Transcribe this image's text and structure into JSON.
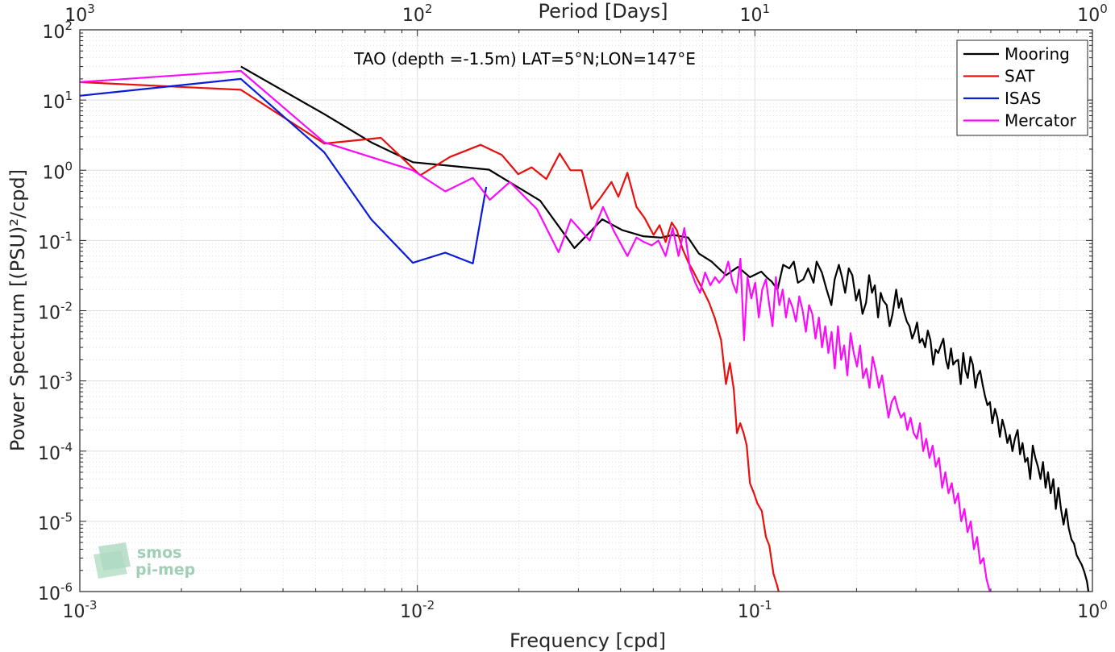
{
  "chart_data": {
    "type": "line",
    "title": "TAO (depth =-1.5m) LAT=5°N;LON=147°E",
    "xlabel": "Frequency [cpd]",
    "ylabel": "Power Spectrum [(PSU)²/cpd]",
    "top_xlabel": "Period [Days]",
    "xscale": "log",
    "yscale": "log",
    "xlim": [
      0.001,
      1
    ],
    "ylim": [
      1e-06,
      100
    ],
    "x_ticks": [
      {
        "base": "10",
        "exp": "-3"
      },
      {
        "base": "10",
        "exp": "-2"
      },
      {
        "base": "10",
        "exp": "-1"
      },
      {
        "base": "10",
        "exp": "0"
      }
    ],
    "top_ticks": [
      {
        "base": "10",
        "exp": "3"
      },
      {
        "base": "10",
        "exp": "2"
      },
      {
        "base": "10",
        "exp": "1"
      },
      {
        "base": "10",
        "exp": "0"
      }
    ],
    "y_ticks": [
      {
        "base": "10",
        "exp": "-6"
      },
      {
        "base": "10",
        "exp": "-5"
      },
      {
        "base": "10",
        "exp": "-4"
      },
      {
        "base": "10",
        "exp": "-3"
      },
      {
        "base": "10",
        "exp": "-2"
      },
      {
        "base": "10",
        "exp": "-1"
      },
      {
        "base": "10",
        "exp": "0"
      },
      {
        "base": "10",
        "exp": "1"
      },
      {
        "base": "10",
        "exp": "2"
      }
    ],
    "grid": true,
    "legend_position": "top-right",
    "watermark": [
      "smos",
      "pi-mep"
    ],
    "series": [
      {
        "name": "Mooring",
        "color": "#000000",
        "x": [
          0.003,
          0.0053,
          0.0073,
          0.0097,
          0.012,
          0.0163,
          0.0231,
          0.0292,
          0.0353,
          0.0405,
          0.0466,
          0.0527,
          0.0573,
          0.0634,
          0.0683,
          0.0744,
          0.0821,
          0.0891,
          0.0967,
          0.1045,
          0.1083,
          0.1121,
          0.1167,
          0.1213,
          0.1265,
          0.1304,
          0.1341,
          0.1392,
          0.1438,
          0.1492,
          0.1524,
          0.1579,
          0.1631,
          0.1685,
          0.1723,
          0.1773,
          0.1812,
          0.1851,
          0.1898,
          0.1944,
          0.1995,
          0.2036,
          0.2084,
          0.2134,
          0.2179,
          0.2223,
          0.2266,
          0.2317,
          0.2359,
          0.2398,
          0.2457,
          0.2508,
          0.2558,
          0.2622,
          0.2668,
          0.2718,
          0.2759,
          0.2819,
          0.2871,
          0.2923,
          0.2976,
          0.3024,
          0.3079,
          0.3134,
          0.3195,
          0.3252,
          0.3313,
          0.3374,
          0.3429,
          0.3492,
          0.3555,
          0.3618,
          0.3682,
          0.3738,
          0.3812,
          0.3869,
          0.3933,
          0.4001,
          0.4072,
          0.4143,
          0.4208,
          0.4273,
          0.4351,
          0.4423,
          0.4502,
          0.4573,
          0.4647,
          0.4725,
          0.481,
          0.4888,
          0.497,
          0.5051,
          0.5143,
          0.5228,
          0.532,
          0.5411,
          0.5509,
          0.5599,
          0.5692,
          0.5795,
          0.5893,
          0.6003,
          0.6104,
          0.6208,
          0.6321,
          0.6428,
          0.6542,
          0.6657,
          0.6775,
          0.6896,
          0.7018,
          0.7137,
          0.7263,
          0.7387,
          0.7522,
          0.7657,
          0.7791,
          0.7929,
          0.807,
          0.8213,
          0.8359,
          0.8508,
          0.8667,
          0.882,
          0.8976,
          0.9137,
          0.9299,
          0.9465,
          0.9633,
          0.98
        ],
        "y": [
          30,
          6.3,
          2.5,
          1.3,
          1.18,
          1.02,
          0.37,
          0.078,
          0.2,
          0.14,
          0.115,
          0.11,
          0.12,
          0.11,
          0.065,
          0.05,
          0.032,
          0.042,
          0.03,
          0.036,
          0.03,
          0.026,
          0.02,
          0.045,
          0.04,
          0.05,
          0.025,
          0.028,
          0.04,
          0.025,
          0.05,
          0.035,
          0.02,
          0.012,
          0.028,
          0.045,
          0.03,
          0.018,
          0.04,
          0.032,
          0.014,
          0.02,
          0.009,
          0.013,
          0.032,
          0.018,
          0.023,
          0.008,
          0.018,
          0.014,
          0.012,
          0.006,
          0.009,
          0.02,
          0.011,
          0.015,
          0.01,
          0.007,
          0.006,
          0.004,
          0.005,
          0.0068,
          0.0035,
          0.004,
          0.003,
          0.0052,
          0.0038,
          0.0017,
          0.0028,
          0.0025,
          0.0032,
          0.004,
          0.002,
          0.0015,
          0.0029,
          0.0017,
          0.0019,
          0.002,
          0.0009,
          0.0025,
          0.0014,
          0.0011,
          0.0022,
          0.0017,
          0.0008,
          0.0012,
          0.0014,
          0.0009,
          0.0006,
          0.00045,
          0.0005,
          0.00025,
          0.0004,
          0.0003,
          0.00016,
          0.00028,
          0.0002,
          0.00013,
          0.00017,
          0.0001,
          0.00015,
          0.0002,
          9e-05,
          0.00013,
          7e-05,
          8e-05,
          4e-05,
          0.00012,
          8e-05,
          6e-05,
          4e-05,
          7e-05,
          3e-05,
          5e-05,
          2.5e-05,
          4e-05,
          1.5e-05,
          3e-05,
          1.5e-05,
          9e-06,
          1.5e-05,
          8e-06,
          5.5e-06,
          4.8e-06,
          3.3e-06,
          2.8e-06,
          2.4e-06,
          1.9e-06,
          1.4e-06,
          8e-07
        ]
      },
      {
        "name": "SAT",
        "color": "#e8100f",
        "x": [
          0.001,
          0.003,
          0.0053,
          0.0078,
          0.0102,
          0.0125,
          0.0154,
          0.0178,
          0.0199,
          0.0218,
          0.0241,
          0.0264,
          0.0284,
          0.0307,
          0.0328,
          0.0348,
          0.0376,
          0.0394,
          0.0419,
          0.0446,
          0.0471,
          0.0501,
          0.0522,
          0.0544,
          0.0567,
          0.0587,
          0.0611,
          0.0636,
          0.0654,
          0.0675,
          0.0701,
          0.0732,
          0.0761,
          0.0794,
          0.0821,
          0.0843,
          0.0866,
          0.0885,
          0.0905,
          0.0926,
          0.0946,
          0.0967,
          0.0994,
          0.1017,
          0.1048,
          0.1078,
          0.1104,
          0.1135,
          0.1165,
          0.1196,
          0.1224
        ],
        "y": [
          18,
          14,
          2.4,
          2.9,
          0.85,
          1.55,
          2.3,
          1.65,
          0.88,
          1.1,
          0.75,
          1.73,
          1.0,
          1.0,
          0.28,
          0.4,
          0.68,
          0.42,
          0.92,
          0.3,
          0.21,
          0.12,
          0.165,
          0.095,
          0.18,
          0.14,
          0.075,
          0.048,
          0.038,
          0.028,
          0.02,
          0.013,
          0.0078,
          0.0038,
          0.0009,
          0.0018,
          0.00075,
          0.00018,
          0.00025,
          0.00018,
          0.00012,
          3.5e-05,
          2.5e-05,
          1.8e-05,
          1.4e-05,
          6e-06,
          4.5e-06,
          1.8e-06,
          1.2e-06,
          7e-07,
          4e-07
        ]
      },
      {
        "name": "ISAS",
        "color": "#0a1bd9",
        "x": [
          0.001,
          0.003,
          0.0053,
          0.0073,
          0.0097,
          0.0121,
          0.0146,
          0.016
        ],
        "y": [
          11.5,
          20,
          1.8,
          0.2,
          0.048,
          0.067,
          0.047,
          0.58
        ]
      },
      {
        "name": "Mercator",
        "color": "#fa0bfa",
        "x": [
          0.001,
          0.003,
          0.0053,
          0.0097,
          0.0121,
          0.0146,
          0.0164,
          0.0188,
          0.0226,
          0.0262,
          0.0285,
          0.0324,
          0.0355,
          0.0381,
          0.0419,
          0.0446,
          0.0469,
          0.0495,
          0.0518,
          0.0544,
          0.0571,
          0.0594,
          0.0618,
          0.0642,
          0.0666,
          0.0688,
          0.0712,
          0.0738,
          0.0762,
          0.0784,
          0.0809,
          0.0834,
          0.0859,
          0.0882,
          0.0906,
          0.0929,
          0.0951,
          0.0976,
          0.1002,
          0.1027,
          0.1051,
          0.1078,
          0.1103,
          0.1128,
          0.1154,
          0.1182,
          0.1209,
          0.1236,
          0.1263,
          0.1294,
          0.1323,
          0.1354,
          0.1385,
          0.1416,
          0.1448,
          0.1479,
          0.1512,
          0.1547,
          0.1581,
          0.1616,
          0.1651,
          0.1688,
          0.1724,
          0.1763,
          0.1801,
          0.1839,
          0.1879,
          0.1921,
          0.1963,
          0.2007,
          0.2049,
          0.2092,
          0.2139,
          0.2186,
          0.2233,
          0.2282,
          0.2331,
          0.2381,
          0.2433,
          0.2488,
          0.2541,
          0.2596,
          0.2652,
          0.2709,
          0.2769,
          0.2829,
          0.2891,
          0.2955,
          0.3018,
          0.3084,
          0.3152,
          0.3219,
          0.3291,
          0.3362,
          0.3435,
          0.3512,
          0.3588,
          0.3667,
          0.3746,
          0.3829,
          0.3914,
          0.3999,
          0.4087,
          0.4175,
          0.4267,
          0.4362,
          0.4455,
          0.4553,
          0.4653,
          0.4754,
          0.4858,
          0.4965,
          0.5
        ],
        "y": [
          18,
          26,
          2.5,
          1.0,
          0.5,
          0.78,
          0.38,
          0.68,
          0.28,
          0.068,
          0.2,
          0.1,
          0.3,
          0.14,
          0.06,
          0.11,
          0.095,
          0.085,
          0.1,
          0.06,
          0.15,
          0.06,
          0.15,
          0.04,
          0.025,
          0.018,
          0.035,
          0.023,
          0.03,
          0.025,
          0.03,
          0.05,
          0.025,
          0.018,
          0.055,
          0.0038,
          0.03,
          0.015,
          0.025,
          0.008,
          0.02,
          0.028,
          0.012,
          0.006,
          0.03,
          0.012,
          0.02,
          0.008,
          0.015,
          0.011,
          0.007,
          0.016,
          0.01,
          0.005,
          0.012,
          0.009,
          0.004,
          0.008,
          0.003,
          0.006,
          0.0025,
          0.005,
          0.0015,
          0.006,
          0.002,
          0.0032,
          0.0012,
          0.0048,
          0.0025,
          0.0016,
          0.0032,
          0.0011,
          0.0015,
          0.0008,
          0.0022,
          0.0014,
          0.0008,
          0.0012,
          0.0006,
          0.0003,
          0.0005,
          0.0006,
          0.0004,
          0.0003,
          0.00035,
          0.0002,
          0.0003,
          0.00018,
          0.00015,
          0.00025,
          0.0001,
          0.00015,
          8e-05,
          0.00012,
          6e-05,
          8e-05,
          3e-05,
          5e-05,
          2.5e-05,
          3.5e-05,
          1.8e-05,
          2.5e-05,
          1e-05,
          1.5e-05,
          7e-06,
          1e-05,
          4e-06,
          6e-06,
          2.5e-06,
          3e-06,
          1.5e-06,
          1e-06,
          5e-07
        ]
      }
    ]
  }
}
